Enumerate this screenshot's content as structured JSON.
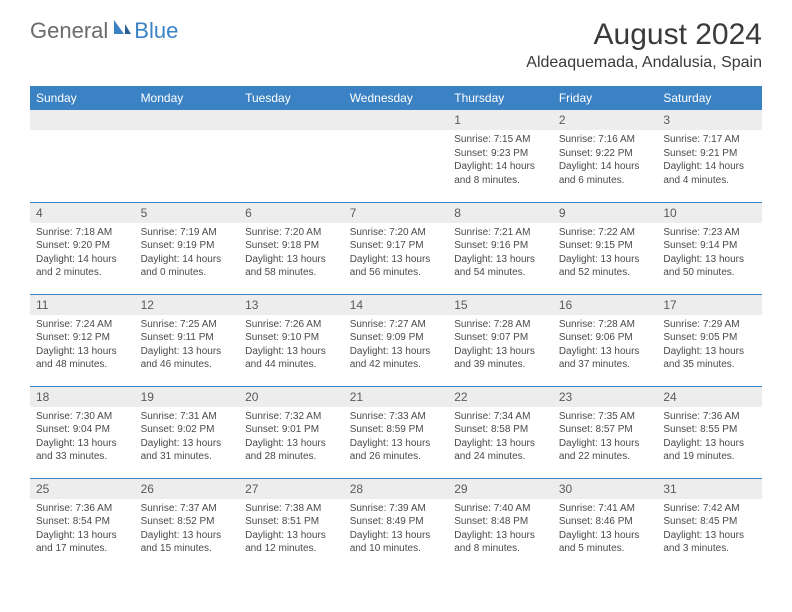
{
  "brand": {
    "part1": "General",
    "part2": "Blue"
  },
  "title": "August 2024",
  "location": "Aldeaquemada, Andalusia, Spain",
  "weekdays": [
    "Sunday",
    "Monday",
    "Tuesday",
    "Wednesday",
    "Thursday",
    "Friday",
    "Saturday"
  ],
  "colors": {
    "accent": "#3b82c4",
    "header_bg": "#3b82c4",
    "daynum_bg": "#ededed",
    "text": "#3a3a3a",
    "logo_gray": "#6b6b6b"
  },
  "weeks": [
    [
      null,
      null,
      null,
      null,
      {
        "n": "1",
        "sr": "Sunrise: 7:15 AM",
        "ss": "Sunset: 9:23 PM",
        "dl": "Daylight: 14 hours and 8 minutes."
      },
      {
        "n": "2",
        "sr": "Sunrise: 7:16 AM",
        "ss": "Sunset: 9:22 PM",
        "dl": "Daylight: 14 hours and 6 minutes."
      },
      {
        "n": "3",
        "sr": "Sunrise: 7:17 AM",
        "ss": "Sunset: 9:21 PM",
        "dl": "Daylight: 14 hours and 4 minutes."
      }
    ],
    [
      {
        "n": "4",
        "sr": "Sunrise: 7:18 AM",
        "ss": "Sunset: 9:20 PM",
        "dl": "Daylight: 14 hours and 2 minutes."
      },
      {
        "n": "5",
        "sr": "Sunrise: 7:19 AM",
        "ss": "Sunset: 9:19 PM",
        "dl": "Daylight: 14 hours and 0 minutes."
      },
      {
        "n": "6",
        "sr": "Sunrise: 7:20 AM",
        "ss": "Sunset: 9:18 PM",
        "dl": "Daylight: 13 hours and 58 minutes."
      },
      {
        "n": "7",
        "sr": "Sunrise: 7:20 AM",
        "ss": "Sunset: 9:17 PM",
        "dl": "Daylight: 13 hours and 56 minutes."
      },
      {
        "n": "8",
        "sr": "Sunrise: 7:21 AM",
        "ss": "Sunset: 9:16 PM",
        "dl": "Daylight: 13 hours and 54 minutes."
      },
      {
        "n": "9",
        "sr": "Sunrise: 7:22 AM",
        "ss": "Sunset: 9:15 PM",
        "dl": "Daylight: 13 hours and 52 minutes."
      },
      {
        "n": "10",
        "sr": "Sunrise: 7:23 AM",
        "ss": "Sunset: 9:14 PM",
        "dl": "Daylight: 13 hours and 50 minutes."
      }
    ],
    [
      {
        "n": "11",
        "sr": "Sunrise: 7:24 AM",
        "ss": "Sunset: 9:12 PM",
        "dl": "Daylight: 13 hours and 48 minutes."
      },
      {
        "n": "12",
        "sr": "Sunrise: 7:25 AM",
        "ss": "Sunset: 9:11 PM",
        "dl": "Daylight: 13 hours and 46 minutes."
      },
      {
        "n": "13",
        "sr": "Sunrise: 7:26 AM",
        "ss": "Sunset: 9:10 PM",
        "dl": "Daylight: 13 hours and 44 minutes."
      },
      {
        "n": "14",
        "sr": "Sunrise: 7:27 AM",
        "ss": "Sunset: 9:09 PM",
        "dl": "Daylight: 13 hours and 42 minutes."
      },
      {
        "n": "15",
        "sr": "Sunrise: 7:28 AM",
        "ss": "Sunset: 9:07 PM",
        "dl": "Daylight: 13 hours and 39 minutes."
      },
      {
        "n": "16",
        "sr": "Sunrise: 7:28 AM",
        "ss": "Sunset: 9:06 PM",
        "dl": "Daylight: 13 hours and 37 minutes."
      },
      {
        "n": "17",
        "sr": "Sunrise: 7:29 AM",
        "ss": "Sunset: 9:05 PM",
        "dl": "Daylight: 13 hours and 35 minutes."
      }
    ],
    [
      {
        "n": "18",
        "sr": "Sunrise: 7:30 AM",
        "ss": "Sunset: 9:04 PM",
        "dl": "Daylight: 13 hours and 33 minutes."
      },
      {
        "n": "19",
        "sr": "Sunrise: 7:31 AM",
        "ss": "Sunset: 9:02 PM",
        "dl": "Daylight: 13 hours and 31 minutes."
      },
      {
        "n": "20",
        "sr": "Sunrise: 7:32 AM",
        "ss": "Sunset: 9:01 PM",
        "dl": "Daylight: 13 hours and 28 minutes."
      },
      {
        "n": "21",
        "sr": "Sunrise: 7:33 AM",
        "ss": "Sunset: 8:59 PM",
        "dl": "Daylight: 13 hours and 26 minutes."
      },
      {
        "n": "22",
        "sr": "Sunrise: 7:34 AM",
        "ss": "Sunset: 8:58 PM",
        "dl": "Daylight: 13 hours and 24 minutes."
      },
      {
        "n": "23",
        "sr": "Sunrise: 7:35 AM",
        "ss": "Sunset: 8:57 PM",
        "dl": "Daylight: 13 hours and 22 minutes."
      },
      {
        "n": "24",
        "sr": "Sunrise: 7:36 AM",
        "ss": "Sunset: 8:55 PM",
        "dl": "Daylight: 13 hours and 19 minutes."
      }
    ],
    [
      {
        "n": "25",
        "sr": "Sunrise: 7:36 AM",
        "ss": "Sunset: 8:54 PM",
        "dl": "Daylight: 13 hours and 17 minutes."
      },
      {
        "n": "26",
        "sr": "Sunrise: 7:37 AM",
        "ss": "Sunset: 8:52 PM",
        "dl": "Daylight: 13 hours and 15 minutes."
      },
      {
        "n": "27",
        "sr": "Sunrise: 7:38 AM",
        "ss": "Sunset: 8:51 PM",
        "dl": "Daylight: 13 hours and 12 minutes."
      },
      {
        "n": "28",
        "sr": "Sunrise: 7:39 AM",
        "ss": "Sunset: 8:49 PM",
        "dl": "Daylight: 13 hours and 10 minutes."
      },
      {
        "n": "29",
        "sr": "Sunrise: 7:40 AM",
        "ss": "Sunset: 8:48 PM",
        "dl": "Daylight: 13 hours and 8 minutes."
      },
      {
        "n": "30",
        "sr": "Sunrise: 7:41 AM",
        "ss": "Sunset: 8:46 PM",
        "dl": "Daylight: 13 hours and 5 minutes."
      },
      {
        "n": "31",
        "sr": "Sunrise: 7:42 AM",
        "ss": "Sunset: 8:45 PM",
        "dl": "Daylight: 13 hours and 3 minutes."
      }
    ]
  ]
}
